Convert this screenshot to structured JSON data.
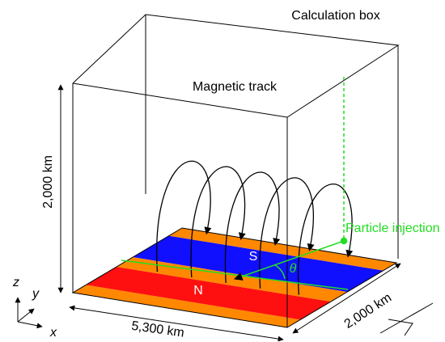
{
  "labels": {
    "calculation_box": "Calculation box",
    "magnetic_track": "Magnetic track",
    "height": "2,000 km",
    "length": "5,300 km",
    "width": "2,000 km",
    "particle_injection": "Particle injection",
    "south": "S",
    "north": "N",
    "angle": "θ"
  },
  "axes": {
    "z": "z",
    "y": "y",
    "x": "x"
  }
}
